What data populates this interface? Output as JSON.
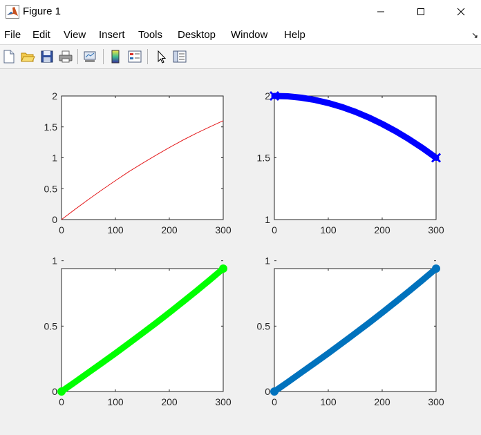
{
  "window": {
    "title": "Figure 1"
  },
  "menu": [
    "File",
    "Edit",
    "View",
    "Insert",
    "Tools",
    "Desktop",
    "Window",
    "Help"
  ],
  "colors": {
    "red": "#e41a1c",
    "blue": "#0000ff",
    "green": "#00ff00",
    "matlab_blue": "#0072bd"
  },
  "chart_data": [
    {
      "type": "line",
      "x": [
        0,
        25,
        50,
        75,
        100,
        125,
        150,
        175,
        200,
        225,
        250,
        275,
        300
      ],
      "series": [
        {
          "values": [
            0,
            0.165,
            0.325,
            0.48,
            0.63,
            0.775,
            0.91,
            1.04,
            1.165,
            1.285,
            1.395,
            1.5,
            1.6
          ],
          "color": "#e41a1c",
          "width": 1
        }
      ],
      "xlim": [
        0,
        300
      ],
      "ylim": [
        0,
        2
      ],
      "xticks": [
        "0",
        "100",
        "200",
        "300"
      ],
      "yticks": [
        "0",
        "0.5",
        "1",
        "1.5",
        "2"
      ],
      "xtick_values": [
        0,
        100,
        200,
        300
      ],
      "ytick_values": [
        0,
        0.5,
        1,
        1.5,
        2
      ],
      "title": "",
      "xlabel": "",
      "ylabel": ""
    },
    {
      "type": "line",
      "x": [
        0,
        25,
        50,
        75,
        100,
        125,
        150,
        175,
        200,
        225,
        250,
        275,
        300
      ],
      "series": [
        {
          "values": [
            2.0,
            1.997,
            1.986,
            1.968,
            1.943,
            1.911,
            1.872,
            1.826,
            1.774,
            1.715,
            1.65,
            1.578,
            1.5
          ],
          "color": "#0000ff",
          "width": 9,
          "marker": "x"
        }
      ],
      "xlim": [
        0,
        300
      ],
      "ylim": [
        1,
        2
      ],
      "xticks": [
        "0",
        "100",
        "200",
        "300"
      ],
      "yticks": [
        "1",
        "1.5",
        "2"
      ],
      "xtick_values": [
        0,
        100,
        200,
        300
      ],
      "ytick_values": [
        1,
        1.5,
        2
      ],
      "title": "",
      "xlabel": "",
      "ylabel": ""
    },
    {
      "type": "line",
      "x": [
        0,
        25,
        50,
        75,
        100,
        125,
        150,
        175,
        200,
        225,
        250,
        275,
        300
      ],
      "series": [
        {
          "values": [
            0,
            0.072,
            0.145,
            0.218,
            0.292,
            0.368,
            0.445,
            0.523,
            0.603,
            0.685,
            0.768,
            0.853,
            0.94
          ],
          "color": "#00ff00",
          "width": 9,
          "marker": "o"
        }
      ],
      "xlim": [
        0,
        300
      ],
      "ylim": [
        0,
        0.94
      ],
      "xticks": [
        "0",
        "100",
        "200",
        "300"
      ],
      "yticks": [
        "0",
        "0.5",
        "1"
      ],
      "xtick_values": [
        0,
        100,
        200,
        300
      ],
      "ytick_values": [
        0,
        0.5,
        1
      ],
      "title": "",
      "xlabel": "",
      "ylabel": ""
    },
    {
      "type": "line",
      "x": [
        0,
        25,
        50,
        75,
        100,
        125,
        150,
        175,
        200,
        225,
        250,
        275,
        300
      ],
      "series": [
        {
          "values": [
            0,
            0.072,
            0.145,
            0.218,
            0.292,
            0.368,
            0.445,
            0.523,
            0.603,
            0.685,
            0.768,
            0.853,
            0.94
          ],
          "color": "#0072bd",
          "width": 9,
          "marker": "o"
        }
      ],
      "xlim": [
        0,
        300
      ],
      "ylim": [
        0,
        0.94
      ],
      "xticks": [
        "0",
        "100",
        "200",
        "300"
      ],
      "yticks": [
        "0",
        "0.5",
        "1"
      ],
      "xtick_values": [
        0,
        100,
        200,
        300
      ],
      "ytick_values": [
        0,
        0.5,
        1
      ],
      "title": "",
      "xlabel": "",
      "ylabel": ""
    }
  ]
}
